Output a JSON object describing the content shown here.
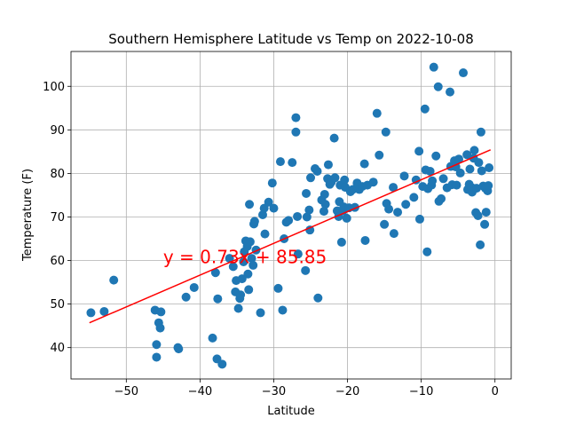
{
  "chart_data": {
    "type": "scatter",
    "title": "Southern Hemisphere Latitude vs Temp on 2022-10-08",
    "xlabel": "Latitude",
    "ylabel": "Temperature (F)",
    "xlim": [
      -57.5,
      2.2
    ],
    "ylim": [
      32.8,
      108
    ],
    "xticks": [
      -50,
      -40,
      -30,
      -20,
      -10,
      0
    ],
    "xtick_labels": [
      "−50",
      "−40",
      "−30",
      "−20",
      "−10",
      "0"
    ],
    "yticks": [
      40,
      50,
      60,
      70,
      80,
      90,
      100
    ],
    "ytick_labels": [
      "40",
      "50",
      "60",
      "70",
      "80",
      "90",
      "100"
    ],
    "grid": true,
    "point_color": "#1f77b4",
    "regression": {
      "slope": 0.73,
      "intercept": 85.85,
      "x_range": [
        -55,
        -0.6
      ],
      "color": "#ff0000",
      "equation_text": "y = 0.73x + 85.85",
      "equation_position": [
        -45,
        59.4
      ]
    },
    "points": [
      [
        -54.8,
        48.0
      ],
      [
        -53.0,
        48.3
      ],
      [
        -51.7,
        55.5
      ],
      [
        -46.1,
        48.6
      ],
      [
        -45.9,
        40.7
      ],
      [
        -45.9,
        37.8
      ],
      [
        -45.6,
        45.7
      ],
      [
        -45.4,
        44.5
      ],
      [
        -45.3,
        48.2
      ],
      [
        -43.0,
        40.0
      ],
      [
        -42.9,
        39.7
      ],
      [
        -41.9,
        51.6
      ],
      [
        -40.8,
        53.8
      ],
      [
        -38.3,
        42.2
      ],
      [
        -37.9,
        57.2
      ],
      [
        -37.7,
        37.4
      ],
      [
        -37.6,
        51.2
      ],
      [
        -37.0,
        36.2
      ],
      [
        -36.0,
        60.5
      ],
      [
        -35.5,
        58.6
      ],
      [
        -35.2,
        52.8
      ],
      [
        -35.1,
        55.4
      ],
      [
        -34.8,
        49.0
      ],
      [
        -34.6,
        51.3
      ],
      [
        -34.5,
        52.1
      ],
      [
        -34.3,
        55.8
      ],
      [
        -34.1,
        59.7
      ],
      [
        -34.0,
        62.0
      ],
      [
        -33.8,
        64.5
      ],
      [
        -33.6,
        63.2
      ],
      [
        -33.5,
        56.9
      ],
      [
        -33.4,
        53.3
      ],
      [
        -33.3,
        72.9
      ],
      [
        -33.2,
        64.3
      ],
      [
        -33.0,
        60.5
      ],
      [
        -32.8,
        58.9
      ],
      [
        -32.7,
        68.4
      ],
      [
        -32.6,
        69.0
      ],
      [
        -32.4,
        62.4
      ],
      [
        -31.8,
        48.0
      ],
      [
        -31.5,
        70.5
      ],
      [
        -31.3,
        72.0
      ],
      [
        -31.2,
        66.1
      ],
      [
        -30.7,
        73.4
      ],
      [
        -30.2,
        77.8
      ],
      [
        -30.0,
        72.0
      ],
      [
        -29.4,
        53.6
      ],
      [
        -29.1,
        82.7
      ],
      [
        -28.8,
        48.6
      ],
      [
        -28.6,
        65.0
      ],
      [
        -28.3,
        68.8
      ],
      [
        -28.0,
        69.2
      ],
      [
        -27.5,
        82.5
      ],
      [
        -27.0,
        92.8
      ],
      [
        -27.0,
        89.5
      ],
      [
        -26.8,
        70.1
      ],
      [
        -26.7,
        61.5
      ],
      [
        -25.7,
        57.7
      ],
      [
        -25.6,
        75.4
      ],
      [
        -25.5,
        70.0
      ],
      [
        -25.2,
        71.6
      ],
      [
        -25.1,
        67.0
      ],
      [
        -25.0,
        79.0
      ],
      [
        -24.4,
        81.1
      ],
      [
        -24.1,
        80.5
      ],
      [
        -24.0,
        51.4
      ],
      [
        -23.5,
        73.9
      ],
      [
        -23.2,
        71.3
      ],
      [
        -23.1,
        75.2
      ],
      [
        -23.0,
        72.9
      ],
      [
        -22.7,
        78.8
      ],
      [
        -22.6,
        82.0
      ],
      [
        -22.4,
        77.5
      ],
      [
        -22.2,
        78.0
      ],
      [
        -21.8,
        88.1
      ],
      [
        -21.7,
        79.0
      ],
      [
        -21.4,
        71.4
      ],
      [
        -21.2,
        70.1
      ],
      [
        -21.1,
        73.5
      ],
      [
        -21.0,
        77.3
      ],
      [
        -20.8,
        64.2
      ],
      [
        -20.6,
        71.4
      ],
      [
        -20.5,
        72.3
      ],
      [
        -20.4,
        78.5
      ],
      [
        -20.3,
        76.8
      ],
      [
        -20.1,
        69.7
      ],
      [
        -19.8,
        72.1
      ],
      [
        -19.6,
        75.8
      ],
      [
        -19.3,
        76.3
      ],
      [
        -19.0,
        72.2
      ],
      [
        -18.7,
        77.8
      ],
      [
        -18.4,
        76.3
      ],
      [
        -18.0,
        77.0
      ],
      [
        -17.7,
        82.2
      ],
      [
        -17.6,
        64.6
      ],
      [
        -17.3,
        77.3
      ],
      [
        -16.5,
        78.0
      ],
      [
        -16.0,
        93.8
      ],
      [
        -15.7,
        84.2
      ],
      [
        -15.0,
        68.3
      ],
      [
        -14.8,
        89.5
      ],
      [
        -14.7,
        73.1
      ],
      [
        -14.4,
        71.8
      ],
      [
        -13.8,
        76.8
      ],
      [
        -13.7,
        66.2
      ],
      [
        -13.2,
        71.1
      ],
      [
        -12.3,
        79.4
      ],
      [
        -12.1,
        72.9
      ],
      [
        -11.0,
        74.5
      ],
      [
        -10.7,
        78.5
      ],
      [
        -10.3,
        85.1
      ],
      [
        -10.2,
        69.5
      ],
      [
        -9.8,
        77.0
      ],
      [
        -9.5,
        94.8
      ],
      [
        -9.4,
        80.8
      ],
      [
        -9.2,
        62.0
      ],
      [
        -9.1,
        76.5
      ],
      [
        -8.8,
        80.5
      ],
      [
        -8.6,
        77.3
      ],
      [
        -8.5,
        78.3
      ],
      [
        -8.3,
        104.4
      ],
      [
        -8.0,
        84.0
      ],
      [
        -7.7,
        99.9
      ],
      [
        -7.6,
        73.6
      ],
      [
        -7.3,
        74.2
      ],
      [
        -7.0,
        78.8
      ],
      [
        -6.5,
        76.7
      ],
      [
        -6.1,
        98.7
      ],
      [
        -6.0,
        81.6
      ],
      [
        -5.8,
        77.4
      ],
      [
        -5.5,
        82.9
      ],
      [
        -5.3,
        81.5
      ],
      [
        -5.2,
        77.3
      ],
      [
        -4.9,
        83.3
      ],
      [
        -4.7,
        80.1
      ],
      [
        -4.3,
        103.1
      ],
      [
        -3.8,
        84.3
      ],
      [
        -3.7,
        76.3
      ],
      [
        -3.5,
        77.5
      ],
      [
        -3.4,
        81.0
      ],
      [
        -3.2,
        76.8
      ],
      [
        -3.1,
        75.7
      ],
      [
        -2.9,
        83.5
      ],
      [
        -2.8,
        85.3
      ],
      [
        -2.6,
        71.0
      ],
      [
        -2.5,
        76.6
      ],
      [
        -2.3,
        70.3
      ],
      [
        -2.2,
        82.5
      ],
      [
        -2.0,
        63.6
      ],
      [
        -1.9,
        89.5
      ],
      [
        -1.8,
        80.6
      ],
      [
        -1.6,
        77.1
      ],
      [
        -1.4,
        68.3
      ],
      [
        -1.3,
        76.6
      ],
      [
        -1.2,
        71.1
      ],
      [
        -1.0,
        76.0
      ],
      [
        -0.9,
        77.2
      ],
      [
        -0.8,
        81.3
      ]
    ]
  }
}
